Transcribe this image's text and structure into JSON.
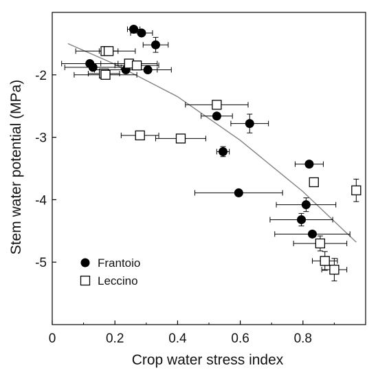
{
  "chart_data": {
    "type": "scatter",
    "xlabel": "Crop water stress index",
    "ylabel": "Stem water potential (MPa)",
    "xlim": [
      0,
      1.0
    ],
    "ylim": [
      -6.0,
      -1.0
    ],
    "x_ticks": [
      0,
      0.2,
      0.4,
      0.6,
      0.8
    ],
    "x_tick_labels": [
      "0",
      "0.2",
      "0.4",
      "0.6",
      "0.8"
    ],
    "y_ticks": [
      -2,
      -3,
      -4,
      -5
    ],
    "y_tick_labels": [
      "-2",
      "-3",
      "-4",
      "-5"
    ],
    "grid": false,
    "legend_position": "bottom-left",
    "series": [
      {
        "name": "Frantoio",
        "marker": "filled-circle",
        "color": "#000000",
        "points": [
          {
            "x": 0.26,
            "y": -1.27,
            "xerr": 0.02,
            "yerr": 0.0
          },
          {
            "x": 0.285,
            "y": -1.33,
            "xerr": 0.035,
            "yerr": 0.0
          },
          {
            "x": 0.33,
            "y": -1.52,
            "xerr": 0.04,
            "yerr": 0.12
          },
          {
            "x": 0.12,
            "y": -1.82,
            "xerr": 0.09,
            "yerr": 0.0
          },
          {
            "x": 0.13,
            "y": -1.88,
            "xerr": 0.09,
            "yerr": 0.0
          },
          {
            "x": 0.235,
            "y": -1.92,
            "xerr": 0.1,
            "yerr": 0.0
          },
          {
            "x": 0.305,
            "y": -1.92,
            "xerr": 0.075,
            "yerr": 0.0
          },
          {
            "x": 0.525,
            "y": -2.66,
            "xerr": 0.05,
            "yerr": 0.0
          },
          {
            "x": 0.63,
            "y": -2.78,
            "xerr": 0.06,
            "yerr": 0.15
          },
          {
            "x": 0.545,
            "y": -3.23,
            "xerr": 0.02,
            "yerr": 0.08
          },
          {
            "x": 0.82,
            "y": -3.43,
            "xerr": 0.045,
            "yerr": 0.0
          },
          {
            "x": 0.595,
            "y": -3.89,
            "xerr": 0.14,
            "yerr": 0.0
          },
          {
            "x": 0.81,
            "y": -4.08,
            "xerr": 0.095,
            "yerr": 0.11
          },
          {
            "x": 0.795,
            "y": -4.32,
            "xerr": 0.1,
            "yerr": 0.1
          },
          {
            "x": 0.83,
            "y": -4.55,
            "xerr": 0.12,
            "yerr": 0.0
          }
        ]
      },
      {
        "name": "Leccino",
        "marker": "open-square",
        "color": "#000000",
        "points": [
          {
            "x": 0.17,
            "y": -1.62,
            "xerr": 0.095,
            "yerr": 0.0
          },
          {
            "x": 0.18,
            "y": -1.62,
            "xerr": 0.03,
            "yerr": 0.0
          },
          {
            "x": 0.245,
            "y": -1.82,
            "xerr": 0.09,
            "yerr": 0.0
          },
          {
            "x": 0.27,
            "y": -1.85,
            "xerr": 0.07,
            "yerr": 0.0
          },
          {
            "x": 0.165,
            "y": -1.98,
            "xerr": 0.05,
            "yerr": 0.0
          },
          {
            "x": 0.17,
            "y": -2.0,
            "xerr": 0.1,
            "yerr": 0.0
          },
          {
            "x": 0.525,
            "y": -2.48,
            "xerr": 0.1,
            "yerr": 0.0
          },
          {
            "x": 0.28,
            "y": -2.97,
            "xerr": 0.06,
            "yerr": 0.0
          },
          {
            "x": 0.41,
            "y": -3.02,
            "xerr": 0.08,
            "yerr": 0.0
          },
          {
            "x": 0.835,
            "y": -3.72,
            "xerr": 0.0,
            "yerr": 0.0
          },
          {
            "x": 0.97,
            "y": -3.85,
            "xerr": 0.0,
            "yerr": 0.18
          },
          {
            "x": 0.855,
            "y": -4.7,
            "xerr": 0.085,
            "yerr": 0.12
          },
          {
            "x": 0.87,
            "y": -4.98,
            "xerr": 0.04,
            "yerr": 0.15
          },
          {
            "x": 0.9,
            "y": -5.12,
            "xerr": 0.04,
            "yerr": 0.18
          }
        ]
      }
    ],
    "fit_line": {
      "color": "#808080",
      "points": [
        [
          0.05,
          -1.5
        ],
        [
          0.2,
          -1.83
        ],
        [
          0.4,
          -2.35
        ],
        [
          0.6,
          -3.05
        ],
        [
          0.8,
          -3.87
        ],
        [
          0.97,
          -4.68
        ]
      ]
    }
  }
}
